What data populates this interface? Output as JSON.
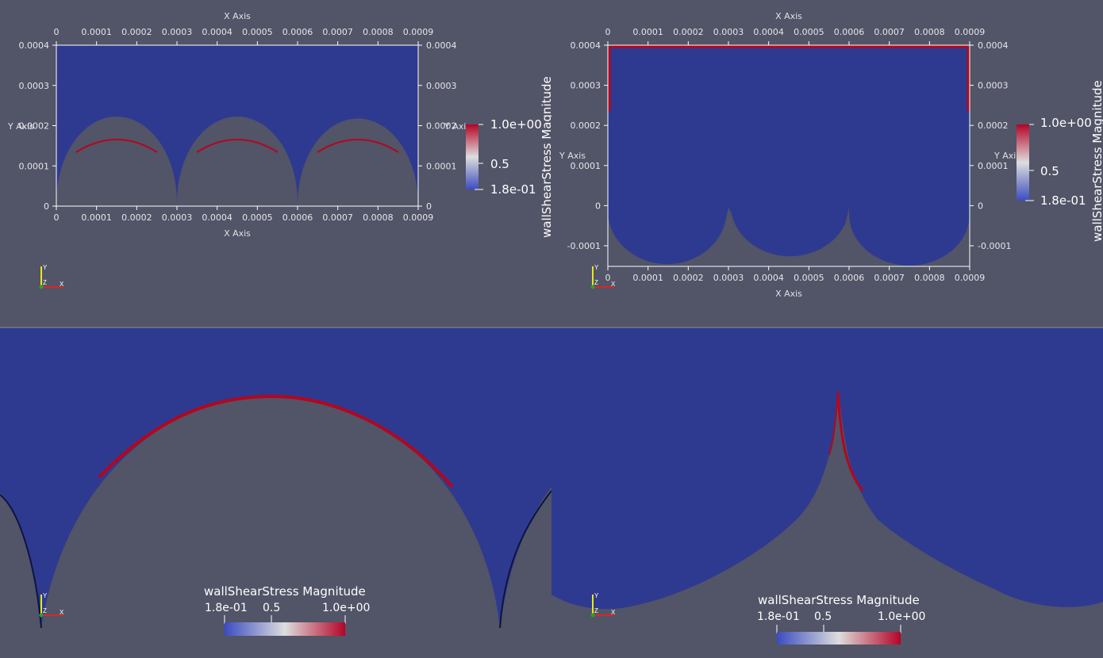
{
  "views": {
    "top_left": {
      "x_axis_title": "X Axis",
      "y_axis_title": "Y Axis",
      "x_ticks": [
        "0",
        "0.0001",
        "0.0002",
        "0.0003",
        "0.0004",
        "0.0005",
        "0.0006",
        "0.0007",
        "0.0008",
        "0.0009"
      ],
      "y_ticks": [
        "0",
        "0.0001",
        "0.0002",
        "0.0003",
        "0.0004"
      ],
      "colorbar": {
        "title": "wallShearStress Magnitude",
        "max_label": "1.0e+00",
        "mid_label": "0.5",
        "min_label": "1.8e-01"
      },
      "orientation_axes": {
        "y": "Y",
        "z": "Z",
        "x": "X"
      }
    },
    "top_right": {
      "x_axis_title": "X Axis",
      "y_axis_title": "Y Axis",
      "x_ticks": [
        "0",
        "0.0001",
        "0.0002",
        "0.0003",
        "0.0004",
        "0.0005",
        "0.0006",
        "0.0007",
        "0.0008",
        "0.0009"
      ],
      "y_ticks": [
        "-0.0001",
        "0",
        "0.0001",
        "0.0002",
        "0.0003",
        "0.0004"
      ],
      "colorbar": {
        "title": "wallShearStress Magnitude",
        "max_label": "1.0e+00",
        "mid_label": "0.5",
        "min_label": "1.8e-01"
      },
      "orientation_axes": {
        "y": "Y",
        "z": "Z",
        "x": "X"
      }
    },
    "bottom_left": {
      "colorbar": {
        "title": "wallShearStress Magnitude",
        "min_label": "1.8e-01",
        "mid_label": "0.5",
        "max_label": "1.0e+00"
      },
      "orientation_axes": {
        "y": "Y",
        "z": "Z",
        "x": "X"
      }
    },
    "bottom_right": {
      "colorbar": {
        "title": "wallShearStress Magnitude",
        "min_label": "1.8e-01",
        "mid_label": "0.5",
        "max_label": "1.0e+00"
      },
      "orientation_axes": {
        "y": "Y",
        "z": "Z",
        "x": "X"
      }
    }
  },
  "colors": {
    "background": "#525467",
    "field": "#2e3a8f",
    "wall_high": "#b4061f",
    "colormap_low": "#3b4cc0",
    "colormap_mid": "#dddddd",
    "colormap_high": "#b40426",
    "axis_line": "#ffffff",
    "orient_x": "#d62728",
    "orient_y": "#e8e81a",
    "orient_z": "#2ca02c"
  }
}
